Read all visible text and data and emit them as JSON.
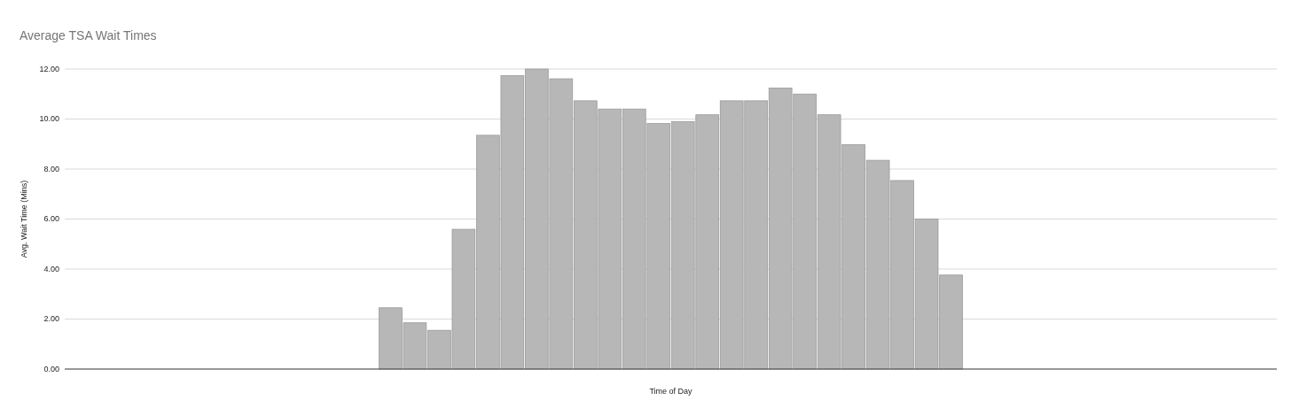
{
  "chart_data": {
    "type": "bar",
    "title": "Average TSA Wait Times",
    "xlabel": "Time of Day",
    "ylabel": "Avg. Wait Time (Mins)",
    "categories": [
      null,
      null,
      null,
      null,
      null,
      null,
      null,
      null,
      null,
      null,
      null,
      null,
      null,
      null,
      null,
      null,
      null,
      null,
      null,
      null,
      null,
      null,
      null,
      null,
      null,
      null,
      null,
      null,
      null,
      null,
      null,
      null,
      null,
      null,
      null,
      null,
      null,
      null,
      null,
      null,
      null,
      null,
      null,
      null,
      null,
      null,
      null,
      null
    ],
    "values": [
      null,
      null,
      null,
      null,
      null,
      null,
      null,
      null,
      null,
      null,
      null,
      null,
      2.45,
      1.85,
      1.55,
      5.59,
      9.35,
      11.74,
      12.0,
      11.61,
      10.73,
      10.4,
      10.4,
      9.82,
      9.9,
      10.17,
      10.73,
      10.73,
      11.24,
      11.0,
      10.17,
      8.98,
      8.35,
      7.54,
      6.0,
      3.76,
      null,
      null,
      null,
      null,
      null,
      null,
      null,
      null,
      null,
      null,
      null,
      null
    ],
    "color": "#b7b7b7",
    "ylim": [
      0,
      12
    ],
    "yticks": [
      {
        "value": 0,
        "label": "0.00"
      },
      {
        "value": 2,
        "label": "2.00"
      },
      {
        "value": 4,
        "label": "4.00"
      },
      {
        "value": 6,
        "label": "6.00"
      },
      {
        "value": 8,
        "label": "8.00"
      },
      {
        "value": 10,
        "label": "10.00"
      },
      {
        "value": 12,
        "label": "12.00"
      }
    ],
    "grid": "y"
  }
}
